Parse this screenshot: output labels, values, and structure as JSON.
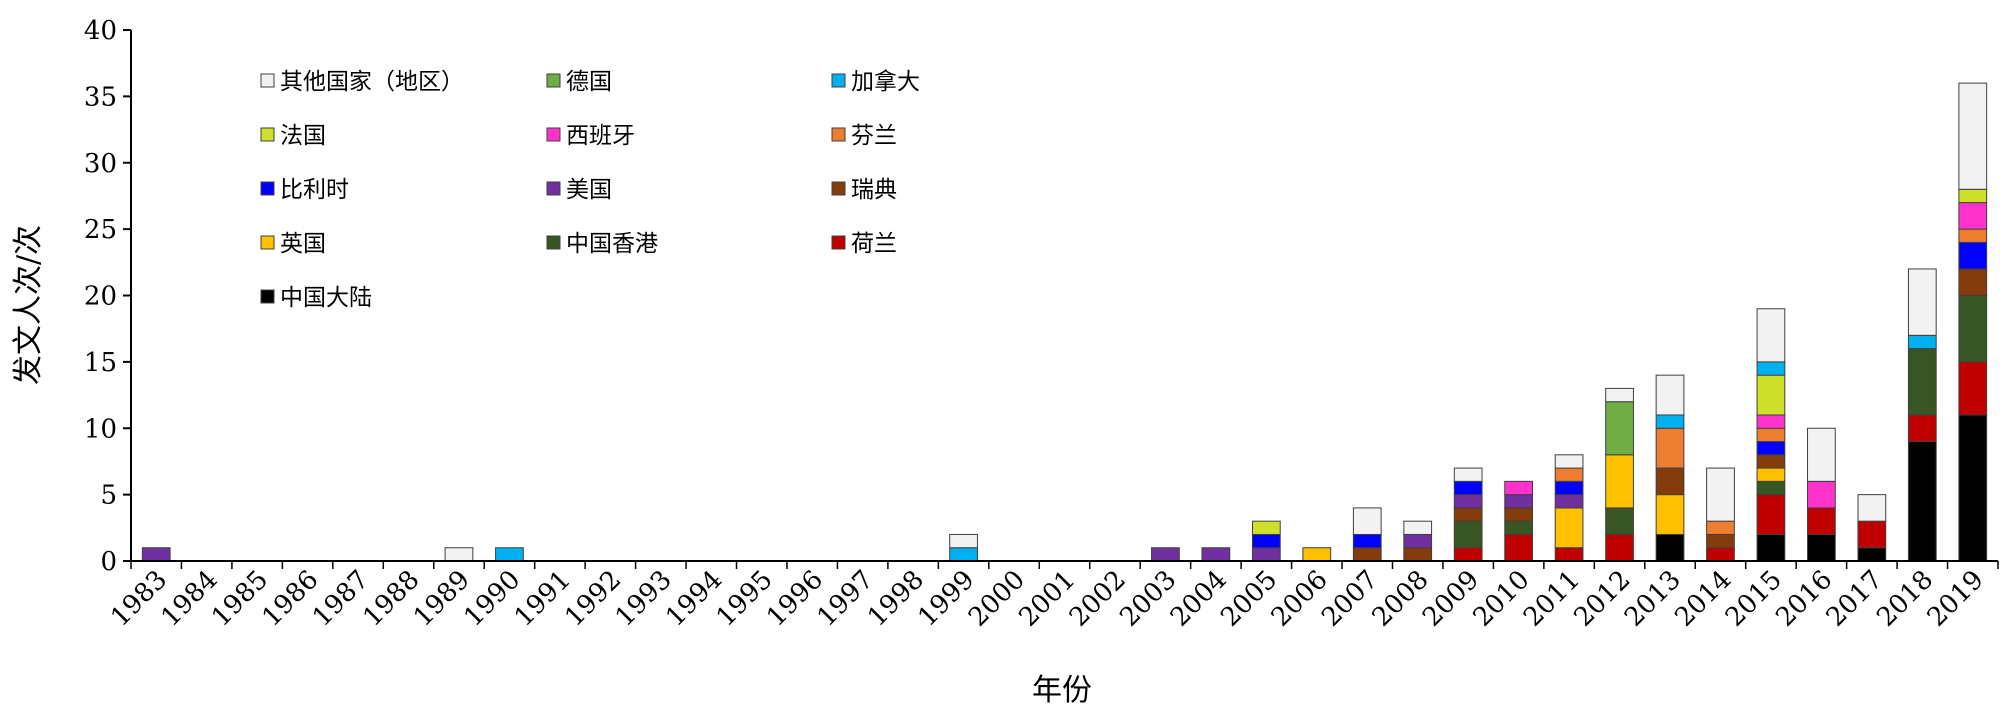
{
  "chart_data": {
    "type": "bar",
    "stacked": true,
    "xlabel": "年份",
    "ylabel": "发文人次/次",
    "ylim": [
      0,
      40
    ],
    "yticks": [
      0,
      5,
      10,
      15,
      20,
      25,
      30,
      35,
      40
    ],
    "grid": false,
    "legend_position": "top-left (inside plot)",
    "categories": [
      "1983",
      "1984",
      "1985",
      "1986",
      "1987",
      "1988",
      "1989",
      "1990",
      "1991",
      "1992",
      "1993",
      "1994",
      "1995",
      "1996",
      "1997",
      "1998",
      "1999",
      "2000",
      "2001",
      "2002",
      "2003",
      "2004",
      "2005",
      "2006",
      "2007",
      "2008",
      "2009",
      "2010",
      "2011",
      "2012",
      "2013",
      "2014",
      "2015",
      "2016",
      "2017",
      "2018",
      "2019"
    ],
    "series": [
      {
        "name": "中国大陆",
        "color": "#000000",
        "values": [
          0,
          0,
          0,
          0,
          0,
          0,
          0,
          0,
          0,
          0,
          0,
          0,
          0,
          0,
          0,
          0,
          0,
          0,
          0,
          0,
          0,
          0,
          0,
          0,
          0,
          0,
          0,
          0,
          0,
          0,
          2,
          0,
          2,
          2,
          1,
          9,
          11
        ]
      },
      {
        "name": "荷兰",
        "color": "#c00000",
        "values": [
          0,
          0,
          0,
          0,
          0,
          0,
          0,
          0,
          0,
          0,
          0,
          0,
          0,
          0,
          0,
          0,
          0,
          0,
          0,
          0,
          0,
          0,
          0,
          0,
          0,
          0,
          1,
          2,
          1,
          2,
          0,
          1,
          3,
          2,
          2,
          2,
          4
        ]
      },
      {
        "name": "中国香港",
        "color": "#375623",
        "values": [
          0,
          0,
          0,
          0,
          0,
          0,
          0,
          0,
          0,
          0,
          0,
          0,
          0,
          0,
          0,
          0,
          0,
          0,
          0,
          0,
          0,
          0,
          0,
          0,
          0,
          0,
          2,
          1,
          0,
          2,
          0,
          0,
          1,
          0,
          0,
          5,
          5
        ]
      },
      {
        "name": "英国",
        "color": "#ffc000",
        "values": [
          0,
          0,
          0,
          0,
          0,
          0,
          0,
          0,
          0,
          0,
          0,
          0,
          0,
          0,
          0,
          0,
          0,
          0,
          0,
          0,
          0,
          0,
          0,
          1,
          0,
          0,
          0,
          0,
          3,
          4,
          3,
          0,
          1,
          0,
          0,
          0,
          0
        ]
      },
      {
        "name": "瑞典",
        "color": "#843c0c",
        "values": [
          0,
          0,
          0,
          0,
          0,
          0,
          0,
          0,
          0,
          0,
          0,
          0,
          0,
          0,
          0,
          0,
          0,
          0,
          0,
          0,
          0,
          0,
          0,
          0,
          1,
          1,
          1,
          1,
          0,
          0,
          2,
          1,
          1,
          0,
          0,
          0,
          2
        ]
      },
      {
        "name": "美国",
        "color": "#7030a0",
        "values": [
          1,
          0,
          0,
          0,
          0,
          0,
          0,
          0,
          0,
          0,
          0,
          0,
          0,
          0,
          0,
          0,
          0,
          0,
          0,
          0,
          1,
          1,
          1,
          0,
          0,
          1,
          1,
          1,
          1,
          0,
          0,
          0,
          0,
          0,
          0,
          0,
          0
        ]
      },
      {
        "name": "比利时",
        "color": "#0000ff",
        "values": [
          0,
          0,
          0,
          0,
          0,
          0,
          0,
          0,
          0,
          0,
          0,
          0,
          0,
          0,
          0,
          0,
          0,
          0,
          0,
          0,
          0,
          0,
          1,
          0,
          1,
          0,
          1,
          0,
          1,
          0,
          0,
          0,
          1,
          0,
          0,
          0,
          2
        ]
      },
      {
        "name": "芬兰",
        "color": "#ed7d31",
        "values": [
          0,
          0,
          0,
          0,
          0,
          0,
          0,
          0,
          0,
          0,
          0,
          0,
          0,
          0,
          0,
          0,
          0,
          0,
          0,
          0,
          0,
          0,
          0,
          0,
          0,
          0,
          0,
          0,
          1,
          0,
          3,
          1,
          1,
          0,
          0,
          0,
          1
        ]
      },
      {
        "name": "西班牙",
        "color": "#ff33cc",
        "values": [
          0,
          0,
          0,
          0,
          0,
          0,
          0,
          0,
          0,
          0,
          0,
          0,
          0,
          0,
          0,
          0,
          0,
          0,
          0,
          0,
          0,
          0,
          0,
          0,
          0,
          0,
          0,
          1,
          0,
          0,
          0,
          0,
          1,
          2,
          0,
          0,
          2
        ]
      },
      {
        "name": "法国",
        "color": "#cfe02a",
        "values": [
          0,
          0,
          0,
          0,
          0,
          0,
          0,
          0,
          0,
          0,
          0,
          0,
          0,
          0,
          0,
          0,
          0,
          0,
          0,
          0,
          0,
          0,
          1,
          0,
          0,
          0,
          0,
          0,
          0,
          0,
          0,
          0,
          3,
          0,
          0,
          0,
          1
        ]
      },
      {
        "name": "加拿大",
        "color": "#00b0f0",
        "values": [
          0,
          0,
          0,
          0,
          0,
          0,
          0,
          1,
          0,
          0,
          0,
          0,
          0,
          0,
          0,
          0,
          1,
          0,
          0,
          0,
          0,
          0,
          0,
          0,
          0,
          0,
          0,
          0,
          0,
          0,
          1,
          0,
          1,
          0,
          0,
          1,
          0
        ]
      },
      {
        "name": "德国",
        "color": "#70ad47",
        "values": [
          0,
          0,
          0,
          0,
          0,
          0,
          0,
          0,
          0,
          0,
          0,
          0,
          0,
          0,
          0,
          0,
          0,
          0,
          0,
          0,
          0,
          0,
          0,
          0,
          0,
          0,
          0,
          0,
          0,
          4,
          0,
          0,
          0,
          0,
          0,
          0,
          0
        ]
      },
      {
        "name": "其他国家（地区）",
        "color": "#f2f2f2",
        "values": [
          0,
          0,
          0,
          0,
          0,
          0,
          1,
          0,
          0,
          0,
          0,
          0,
          0,
          0,
          0,
          0,
          1,
          0,
          0,
          0,
          0,
          0,
          0,
          0,
          2,
          1,
          1,
          0,
          1,
          1,
          3,
          4,
          4,
          4,
          2,
          5,
          8
        ]
      }
    ],
    "legend_order": [
      "其他国家（地区）",
      "德国",
      "加拿大",
      "法国",
      "西班牙",
      "芬兰",
      "比利时",
      "美国",
      "瑞典",
      "英国",
      "中国香港",
      "荷兰",
      "中国大陆"
    ]
  }
}
